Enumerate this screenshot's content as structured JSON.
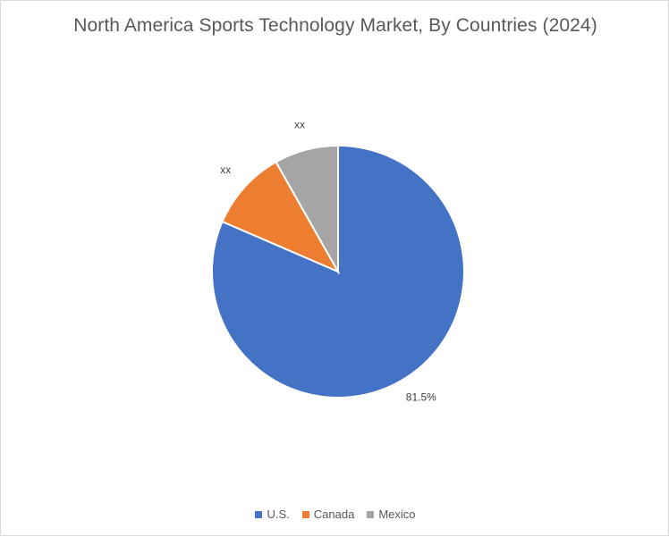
{
  "chart_data": {
    "type": "pie",
    "title": "North America Sports Technology Market, By Countries (2024)",
    "categories": [
      "U.S.",
      "Canada",
      "Mexico"
    ],
    "values": [
      81.5,
      10.3,
      8.2
    ],
    "data_labels": [
      "81.5%",
      "xx",
      "xx"
    ],
    "colors": [
      "#4472c4",
      "#ed7d31",
      "#a5a5a5"
    ],
    "legend_position": "bottom",
    "start_angle_deg": 0,
    "direction": "clockwise"
  }
}
